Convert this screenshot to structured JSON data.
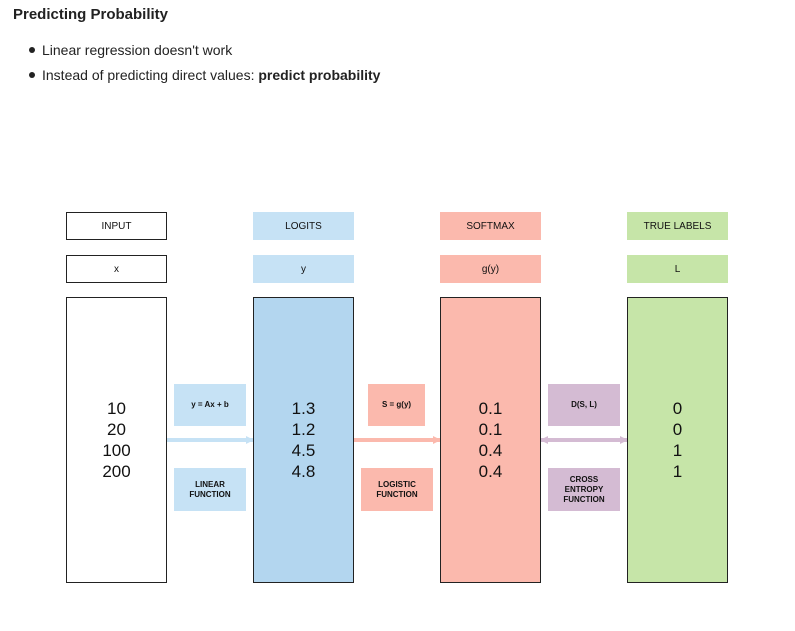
{
  "title": "Predicting Probability",
  "bullets": {
    "b1": "Linear regression doesn't work",
    "b2_prefix": "Instead of predicting direct values: ",
    "b2_bold": "predict probability"
  },
  "diagram": {
    "input": {
      "header": "INPUT",
      "symbol": "x",
      "values": [
        "10",
        "20",
        "100",
        "200"
      ]
    },
    "logits": {
      "header": "LOGITS",
      "symbol": "y",
      "values": [
        "1.3",
        "1.2",
        "4.5",
        "4.8"
      ]
    },
    "softmax": {
      "header": "SOFTMAX",
      "symbol": "g(y)",
      "values": [
        "0.1",
        "0.1",
        "0.4",
        "0.4"
      ]
    },
    "true_labels": {
      "header": "TRUE LABELS",
      "symbol": "L",
      "values": [
        "0",
        "0",
        "1",
        "1"
      ]
    },
    "linear": {
      "formula": "y = Ax + b",
      "name_line1": "LINEAR",
      "name_line2": "FUNCTION"
    },
    "logistic": {
      "formula": "S = g(y)",
      "name_line1": "LOGISTIC",
      "name_line2": "FUNCTION"
    },
    "cross_entropy": {
      "formula": "D(S, L)",
      "name_line1": "CROSS",
      "name_line2": "ENTROPY",
      "name_line3": "FUNCTION"
    }
  },
  "colors": {
    "logits": "#b3d6ef",
    "softmax": "#fbb9ad",
    "true_labels": "#c6e5a8",
    "cross_entropy": "#d4bbd3"
  }
}
